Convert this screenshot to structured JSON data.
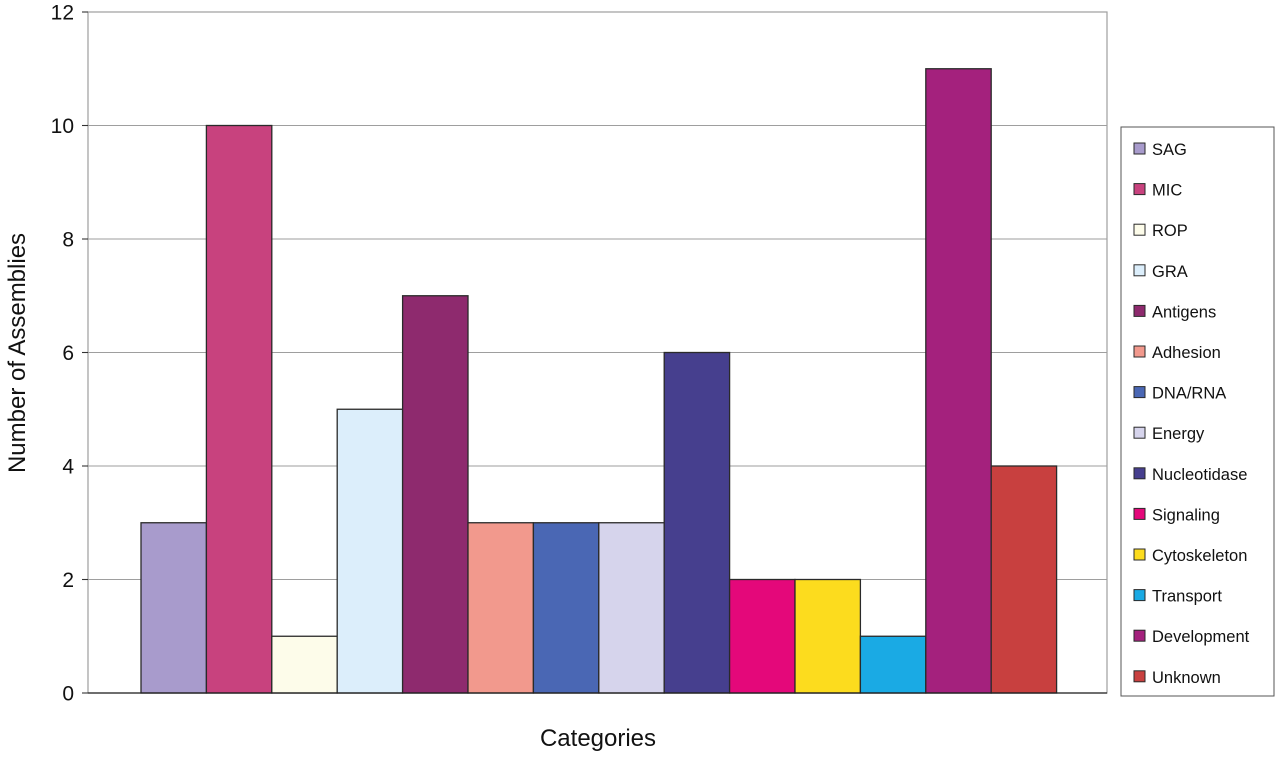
{
  "chart_data": {
    "type": "bar",
    "title": "",
    "xlabel": "Categories",
    "ylabel": "Number of Assemblies",
    "ylim": [
      0,
      12
    ],
    "yticks": [
      0,
      2,
      4,
      6,
      8,
      10,
      12
    ],
    "grid": "horizontal",
    "legend_position": "right",
    "series": [
      {
        "name": "SAG",
        "value": 3,
        "color": "#a89bcc"
      },
      {
        "name": "MIC",
        "value": 10,
        "color": "#c8427e"
      },
      {
        "name": "ROP",
        "value": 1,
        "color": "#fdfcea"
      },
      {
        "name": "GRA",
        "value": 5,
        "color": "#dceefb"
      },
      {
        "name": "Antigens",
        "value": 7,
        "color": "#8e2a6e"
      },
      {
        "name": "Adhesion",
        "value": 3,
        "color": "#f2998d"
      },
      {
        "name": "DNA/RNA",
        "value": 3,
        "color": "#4a67b4"
      },
      {
        "name": "Energy",
        "value": 3,
        "color": "#d6d4ec"
      },
      {
        "name": "Nucleotidase",
        "value": 6,
        "color": "#463f8e"
      },
      {
        "name": "Signaling",
        "value": 2,
        "color": "#e4087a"
      },
      {
        "name": "Cytoskeleton",
        "value": 2,
        "color": "#fcdc1e"
      },
      {
        "name": "Transport",
        "value": 1,
        "color": "#1aaae4"
      },
      {
        "name": "Development",
        "value": 11,
        "color": "#a4217d"
      },
      {
        "name": "Unknown",
        "value": 4,
        "color": "#c8403f"
      }
    ]
  }
}
